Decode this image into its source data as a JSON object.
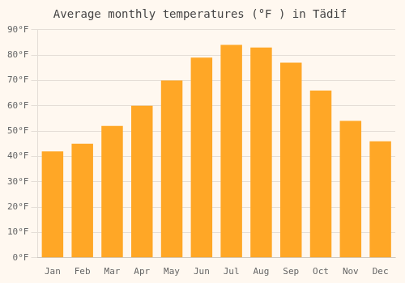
{
  "chart_data": {
    "type": "bar",
    "title": "Average monthly temperatures (°F ) in Tädif",
    "categories": [
      "Jan",
      "Feb",
      "Mar",
      "Apr",
      "May",
      "Jun",
      "Jul",
      "Aug",
      "Sep",
      "Oct",
      "Nov",
      "Dec"
    ],
    "values": [
      42,
      45,
      52,
      60,
      70,
      79,
      84,
      83,
      77,
      66,
      54,
      46
    ],
    "color": "#FFA726",
    "ylim": [
      0,
      90
    ],
    "yticks": [
      {
        "value": 0,
        "label": "0°F"
      },
      {
        "value": 10,
        "label": "10°F"
      },
      {
        "value": 20,
        "label": "20°F"
      },
      {
        "value": 30,
        "label": "30°F"
      },
      {
        "value": 40,
        "label": "40°F"
      },
      {
        "value": 50,
        "label": "50°F"
      },
      {
        "value": 60,
        "label": "60°F"
      },
      {
        "value": 70,
        "label": "70°F"
      },
      {
        "value": 80,
        "label": "80°F"
      },
      {
        "value": 90,
        "label": "90°F"
      }
    ],
    "grid": "y"
  }
}
